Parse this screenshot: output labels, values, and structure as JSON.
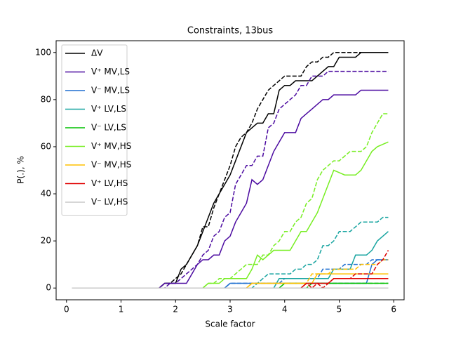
{
  "chart_data": {
    "type": "line",
    "title": "Constraints, 13bus",
    "xlabel": "Scale factor",
    "ylabel": "P(.), %",
    "xlim": [
      -0.19,
      6.19
    ],
    "xticks": [
      0,
      1,
      2,
      3,
      4,
      5,
      6
    ],
    "ylim": [
      -5,
      105
    ],
    "yticks": [
      0,
      20,
      40,
      60,
      80,
      100
    ],
    "legend": "upper left",
    "x": [
      0.1,
      0.2,
      0.3,
      0.4,
      0.5,
      0.6,
      0.7,
      0.8,
      0.9,
      1.0,
      1.1,
      1.2,
      1.3,
      1.4,
      1.5,
      1.6,
      1.7,
      1.8,
      1.9,
      2.0,
      2.1,
      2.2,
      2.3,
      2.4,
      2.5,
      2.6,
      2.7,
      2.8,
      2.9,
      3.0,
      3.1,
      3.2,
      3.3,
      3.4,
      3.5,
      3.6,
      3.7,
      3.8,
      3.9,
      4.0,
      4.1,
      4.2,
      4.3,
      4.4,
      4.5,
      4.6,
      4.7,
      4.8,
      4.9,
      5.0,
      5.1,
      5.2,
      5.3,
      5.4,
      5.5,
      5.6,
      5.7,
      5.8,
      5.9
    ],
    "series": [
      {
        "name": "ΔV",
        "color": "#000000",
        "values": [
          0,
          0,
          0,
          0,
          0,
          0,
          0,
          0,
          0,
          0,
          0,
          0,
          0,
          0,
          0,
          0,
          0,
          2,
          2,
          2,
          8,
          10,
          14,
          18,
          24,
          30,
          36,
          40,
          44,
          48,
          54,
          60,
          66,
          68,
          70,
          70,
          74,
          74,
          84,
          86,
          86,
          88,
          88,
          88,
          88,
          90,
          92,
          94,
          94,
          98,
          98,
          98,
          98,
          100,
          100,
          100,
          100,
          100,
          100
        ],
        "dashed_values": [
          0,
          0,
          0,
          0,
          0,
          0,
          0,
          0,
          0,
          0,
          0,
          0,
          0,
          0,
          0,
          0,
          0,
          2,
          2,
          4,
          6,
          10,
          14,
          18,
          26,
          26,
          34,
          40,
          46,
          52,
          60,
          64,
          66,
          70,
          76,
          80,
          84,
          86,
          88,
          90,
          90,
          90,
          90,
          94,
          96,
          96,
          98,
          98,
          100,
          100,
          100,
          100,
          100,
          100,
          100,
          100,
          100,
          100,
          100
        ]
      },
      {
        "name": "V⁺ MV,LS",
        "color": "#4b0aa0",
        "values": [
          0,
          0,
          0,
          0,
          0,
          0,
          0,
          0,
          0,
          0,
          0,
          0,
          0,
          0,
          0,
          0,
          0,
          2,
          2,
          2,
          2,
          2,
          6,
          10,
          12,
          12,
          14,
          14,
          20,
          22,
          28,
          32,
          36,
          46,
          44,
          46,
          52,
          58,
          62,
          66,
          66,
          66,
          72,
          74,
          76,
          78,
          80,
          80,
          82,
          82,
          82,
          82,
          82,
          84,
          84,
          84,
          84,
          84,
          84
        ],
        "dashed_values": [
          0,
          0,
          0,
          0,
          0,
          0,
          0,
          0,
          0,
          0,
          0,
          0,
          0,
          0,
          0,
          0,
          0,
          0,
          2,
          2,
          4,
          6,
          8,
          10,
          14,
          16,
          22,
          24,
          30,
          32,
          44,
          48,
          52,
          52,
          56,
          56,
          68,
          70,
          76,
          78,
          80,
          82,
          86,
          86,
          90,
          90,
          90,
          92,
          92,
          92,
          92,
          92,
          92,
          92,
          92,
          92,
          92,
          92,
          92
        ]
      },
      {
        "name": "V⁻ MV,LS",
        "color": "#1f6fd0",
        "values": [
          0,
          0,
          0,
          0,
          0,
          0,
          0,
          0,
          0,
          0,
          0,
          0,
          0,
          0,
          0,
          0,
          0,
          0,
          0,
          0,
          0,
          0,
          0,
          0,
          0,
          0,
          0,
          0,
          0,
          2,
          2,
          2,
          2,
          2,
          2,
          2,
          2,
          2,
          2,
          2,
          2,
          2,
          2,
          2,
          2,
          2,
          2,
          2,
          2,
          2,
          2,
          2,
          2,
          2,
          2,
          10,
          12,
          12,
          12
        ],
        "dashed_values": [
          0,
          0,
          0,
          0,
          0,
          0,
          0,
          0,
          0,
          0,
          0,
          0,
          0,
          0,
          0,
          0,
          0,
          0,
          0,
          0,
          0,
          0,
          0,
          0,
          0,
          0,
          0,
          0,
          0,
          2,
          2,
          2,
          2,
          2,
          2,
          2,
          2,
          2,
          2,
          4,
          4,
          4,
          4,
          4,
          4,
          4,
          8,
          8,
          8,
          8,
          10,
          10,
          10,
          10,
          10,
          12,
          12,
          12,
          12
        ]
      },
      {
        "name": "V⁺ LV,LS",
        "color": "#17a4a0",
        "values": [
          0,
          0,
          0,
          0,
          0,
          0,
          0,
          0,
          0,
          0,
          0,
          0,
          0,
          0,
          0,
          0,
          0,
          0,
          0,
          0,
          0,
          0,
          0,
          0,
          0,
          0,
          0,
          0,
          0,
          0,
          0,
          0,
          0,
          0,
          0,
          0,
          0,
          0,
          4,
          4,
          4,
          4,
          4,
          4,
          4,
          4,
          4,
          4,
          8,
          8,
          8,
          8,
          14,
          14,
          14,
          16,
          20,
          22,
          24
        ],
        "dashed_values": [
          0,
          0,
          0,
          0,
          0,
          0,
          0,
          0,
          0,
          0,
          0,
          0,
          0,
          0,
          0,
          0,
          0,
          0,
          0,
          0,
          0,
          0,
          0,
          0,
          0,
          0,
          0,
          0,
          0,
          0,
          0,
          0,
          0,
          0,
          2,
          4,
          6,
          6,
          6,
          6,
          6,
          8,
          8,
          10,
          10,
          12,
          18,
          18,
          20,
          24,
          24,
          24,
          26,
          28,
          28,
          28,
          28,
          30,
          30
        ]
      },
      {
        "name": "V⁻ LV,LS",
        "color": "#00c000",
        "values": [
          0,
          0,
          0,
          0,
          0,
          0,
          0,
          0,
          0,
          0,
          0,
          0,
          0,
          0,
          0,
          0,
          0,
          0,
          0,
          0,
          0,
          0,
          0,
          0,
          0,
          0,
          0,
          0,
          0,
          0,
          0,
          0,
          0,
          0,
          0,
          0,
          0,
          0,
          0,
          2,
          2,
          2,
          2,
          2,
          2,
          2,
          2,
          2,
          2,
          2,
          2,
          2,
          2,
          2,
          2,
          2,
          2,
          2,
          2
        ],
        "dashed_values": [
          0,
          0,
          0,
          0,
          0,
          0,
          0,
          0,
          0,
          0,
          0,
          0,
          0,
          0,
          0,
          0,
          0,
          0,
          0,
          0,
          0,
          0,
          0,
          0,
          0,
          0,
          0,
          0,
          0,
          0,
          0,
          0,
          0,
          0,
          0,
          0,
          0,
          0,
          0,
          0,
          0,
          0,
          0,
          0,
          2,
          2,
          2,
          2,
          2,
          2,
          2,
          2,
          2,
          2,
          2,
          2,
          2,
          2,
          2
        ]
      },
      {
        "name": "V⁺ MV,HS",
        "color": "#77ee22",
        "values": [
          0,
          0,
          0,
          0,
          0,
          0,
          0,
          0,
          0,
          0,
          0,
          0,
          0,
          0,
          0,
          0,
          0,
          0,
          0,
          0,
          0,
          0,
          0,
          0,
          0,
          2,
          2,
          2,
          4,
          4,
          4,
          4,
          4,
          8,
          14,
          12,
          14,
          16,
          16,
          16,
          16,
          20,
          24,
          24,
          28,
          32,
          38,
          44,
          50,
          49,
          48,
          48,
          48,
          50,
          54,
          58,
          60,
          61,
          62
        ],
        "dashed_values": [
          0,
          0,
          0,
          0,
          0,
          0,
          0,
          0,
          0,
          0,
          0,
          0,
          0,
          0,
          0,
          0,
          0,
          0,
          0,
          0,
          0,
          0,
          0,
          0,
          0,
          2,
          2,
          4,
          4,
          4,
          6,
          8,
          10,
          10,
          10,
          14,
          14,
          18,
          20,
          24,
          24,
          28,
          30,
          36,
          38,
          46,
          50,
          52,
          54,
          54,
          56,
          58,
          58,
          58,
          60,
          66,
          70,
          74,
          74
        ]
      },
      {
        "name": "V⁻ MV,HS",
        "color": "#ffc000",
        "values": [
          0,
          0,
          0,
          0,
          0,
          0,
          0,
          0,
          0,
          0,
          0,
          0,
          0,
          0,
          0,
          0,
          0,
          0,
          0,
          0,
          0,
          0,
          0,
          0,
          0,
          0,
          0,
          0,
          0,
          0,
          0,
          0,
          0,
          2,
          2,
          2,
          2,
          2,
          2,
          2,
          2,
          2,
          2,
          2,
          2,
          6,
          6,
          6,
          6,
          6,
          6,
          6,
          6,
          6,
          6,
          6,
          6,
          6,
          6
        ],
        "dashed_values": [
          0,
          0,
          0,
          0,
          0,
          0,
          0,
          0,
          0,
          0,
          0,
          0,
          0,
          0,
          0,
          0,
          0,
          0,
          0,
          0,
          0,
          0,
          0,
          0,
          0,
          0,
          0,
          0,
          0,
          0,
          0,
          0,
          0,
          2,
          2,
          2,
          2,
          2,
          2,
          2,
          2,
          2,
          2,
          2,
          6,
          6,
          6,
          6,
          8,
          8,
          8,
          8,
          8,
          10,
          10,
          10,
          10,
          12,
          12
        ]
      },
      {
        "name": "V⁺ LV,HS",
        "color": "#e00000",
        "values": [
          0,
          0,
          0,
          0,
          0,
          0,
          0,
          0,
          0,
          0,
          0,
          0,
          0,
          0,
          0,
          0,
          0,
          0,
          0,
          0,
          0,
          0,
          0,
          0,
          0,
          0,
          0,
          0,
          0,
          0,
          0,
          0,
          0,
          0,
          0,
          0,
          0,
          0,
          0,
          0,
          0,
          0,
          0,
          2,
          2,
          2,
          2,
          2,
          4,
          4,
          4,
          4,
          4,
          4,
          4,
          4,
          4,
          4,
          4
        ],
        "dashed_values": [
          0,
          0,
          0,
          0,
          0,
          0,
          0,
          0,
          0,
          0,
          0,
          0,
          0,
          0,
          0,
          0,
          0,
          0,
          0,
          0,
          0,
          0,
          0,
          0,
          0,
          0,
          0,
          0,
          0,
          0,
          0,
          0,
          0,
          0,
          0,
          0,
          0,
          0,
          0,
          0,
          0,
          0,
          0,
          2,
          0,
          2,
          0,
          2,
          4,
          4,
          4,
          4,
          6,
          6,
          6,
          6,
          10,
          12,
          16
        ]
      },
      {
        "name": "V⁻ LV,HS",
        "color": "#c8c8c8",
        "values": [
          0,
          0,
          0,
          0,
          0,
          0,
          0,
          0,
          0,
          0,
          0,
          0,
          0,
          0,
          0,
          0,
          0,
          0,
          0,
          0,
          0,
          0,
          0,
          0,
          0,
          0,
          0,
          0,
          0,
          0,
          0,
          0,
          0,
          0,
          0,
          0,
          0,
          0,
          0,
          0,
          0,
          0,
          0,
          0,
          0,
          0,
          0,
          0,
          0,
          0,
          0,
          0,
          0,
          0,
          0,
          0,
          0,
          0,
          0
        ],
        "dashed_values": [
          0,
          0,
          0,
          0,
          0,
          0,
          0,
          0,
          0,
          0,
          0,
          0,
          0,
          0,
          0,
          0,
          0,
          0,
          0,
          0,
          0,
          0,
          0,
          0,
          0,
          0,
          0,
          0,
          0,
          0,
          0,
          0,
          0,
          0,
          0,
          0,
          0,
          0,
          0,
          0,
          0,
          0,
          0,
          0,
          0,
          0,
          0,
          0,
          0,
          0,
          0,
          0,
          0,
          0,
          0,
          0,
          0,
          0,
          0
        ]
      }
    ]
  }
}
